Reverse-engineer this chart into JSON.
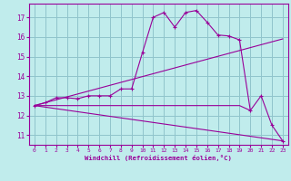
{
  "xlabel": "Windchill (Refroidissement éolien,°C)",
  "bg_color": "#c0ecec",
  "grid_color": "#90c4cc",
  "line_color": "#990099",
  "xlim": [
    -0.5,
    23.5
  ],
  "ylim": [
    10.5,
    17.7
  ],
  "yticks": [
    11,
    12,
    13,
    14,
    15,
    16,
    17
  ],
  "xticks": [
    0,
    1,
    2,
    3,
    4,
    5,
    6,
    7,
    8,
    9,
    10,
    11,
    12,
    13,
    14,
    15,
    16,
    17,
    18,
    19,
    20,
    21,
    22,
    23
  ],
  "line_main": {
    "x": [
      0,
      1,
      2,
      3,
      4,
      5,
      6,
      7,
      8,
      9,
      10,
      11,
      12,
      13,
      14,
      15,
      16,
      17,
      18,
      19,
      20,
      21,
      22,
      23
    ],
    "y": [
      12.5,
      12.65,
      12.9,
      12.9,
      12.85,
      13.0,
      13.0,
      13.0,
      13.35,
      13.35,
      15.2,
      17.0,
      17.25,
      16.5,
      17.25,
      17.35,
      16.75,
      16.1,
      16.05,
      15.85,
      12.25,
      13.0,
      11.5,
      10.7
    ]
  },
  "line_upper": {
    "x": [
      0,
      23
    ],
    "y": [
      12.5,
      15.9
    ]
  },
  "line_lower": {
    "x": [
      0,
      23
    ],
    "y": [
      12.5,
      10.7
    ]
  },
  "line_flat": {
    "x": [
      0,
      1,
      2,
      3,
      4,
      5,
      6,
      7,
      8,
      9,
      10,
      11,
      12,
      13,
      14,
      15,
      16,
      17,
      18,
      19,
      20
    ],
    "y": [
      12.5,
      12.5,
      12.5,
      12.5,
      12.5,
      12.5,
      12.5,
      12.5,
      12.5,
      12.5,
      12.5,
      12.5,
      12.5,
      12.5,
      12.5,
      12.5,
      12.5,
      12.5,
      12.5,
      12.5,
      12.25
    ]
  }
}
